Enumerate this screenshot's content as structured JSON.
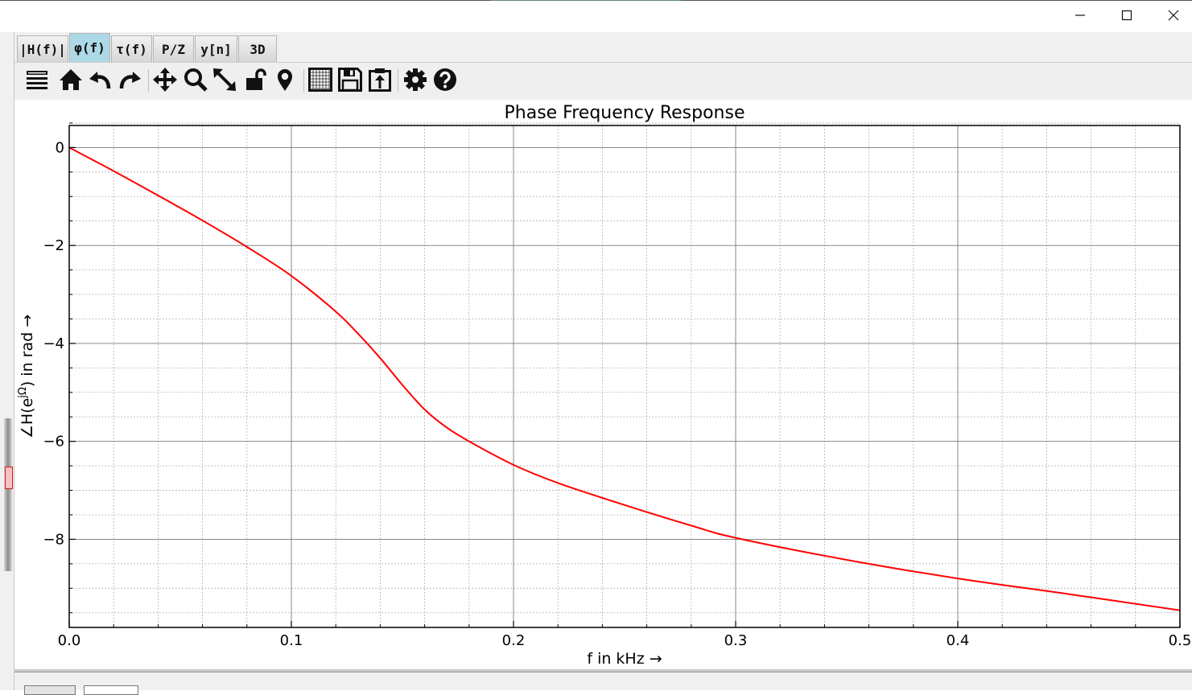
{
  "window": {
    "minimize_icon": "minimize-icon",
    "maximize_icon": "maximize-icon",
    "close_icon": "close-icon"
  },
  "tabs": [
    {
      "label": "|H(f)|",
      "active": false
    },
    {
      "label": "φ(f)",
      "active": true
    },
    {
      "label": "τ(f)",
      "active": false
    },
    {
      "label": "P/Z",
      "active": false
    },
    {
      "label": "y[n]",
      "active": false
    },
    {
      "label": "3D",
      "active": false
    }
  ],
  "toolbar": {
    "icons": [
      "menu-icon",
      "home-icon",
      "undo-icon",
      "redo-icon",
      "pan-icon",
      "zoom-icon",
      "full-view-icon",
      "lock-icon",
      "marker-icon",
      "grid-icon",
      "save-icon",
      "clipboard-icon",
      "settings-icon",
      "help-icon"
    ]
  },
  "colors": {
    "curve": "#ff0000",
    "active_tab": "#add8e6"
  },
  "chart_data": {
    "type": "line",
    "title": "Phase Frequency Response",
    "xlabel": "f in kHz →",
    "ylabel": "∠H(e^jΩ) in rad →",
    "xlim": [
      0,
      0.5
    ],
    "ylim": [
      -9.8,
      0.45
    ],
    "xticks": [
      0.0,
      0.1,
      0.2,
      0.3,
      0.4,
      0.5
    ],
    "xtick_labels": [
      "0.0",
      "0.1",
      "0.2",
      "0.3",
      "0.4",
      "0.5"
    ],
    "yticks": [
      0,
      -2,
      -4,
      -6,
      -8
    ],
    "ytick_labels": [
      "0",
      "−2",
      "−4",
      "−6",
      "−8"
    ],
    "grid": true,
    "series": [
      {
        "color": "#ff0000",
        "x": [
          0.0,
          0.02,
          0.04,
          0.06,
          0.08,
          0.1,
          0.12,
          0.13,
          0.14,
          0.15,
          0.16,
          0.17,
          0.18,
          0.2,
          0.22,
          0.25,
          0.28,
          0.3,
          0.35,
          0.4,
          0.45,
          0.5
        ],
        "y": [
          0.0,
          -0.48,
          -0.98,
          -1.49,
          -2.03,
          -2.62,
          -3.35,
          -3.8,
          -4.3,
          -4.85,
          -5.35,
          -5.72,
          -6.0,
          -6.48,
          -6.85,
          -7.3,
          -7.72,
          -7.97,
          -8.42,
          -8.8,
          -9.12,
          -9.45
        ]
      }
    ]
  }
}
